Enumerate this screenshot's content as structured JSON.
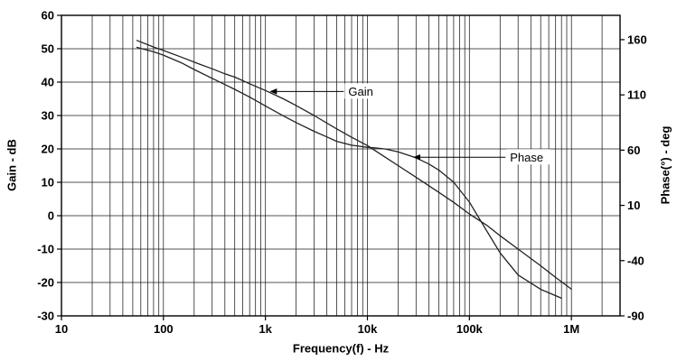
{
  "chart_data": {
    "type": "line",
    "title": "",
    "xlabel": "Frequency(f) - Hz",
    "ylabel_left": "Gain - dB",
    "ylabel_right": "Phase(°) - deg",
    "x_scale": "log",
    "x_range": [
      10,
      3000000
    ],
    "x_ticks": [
      [
        10,
        "10"
      ],
      [
        100,
        "100"
      ],
      [
        1000,
        "1k"
      ],
      [
        10000,
        "10k"
      ],
      [
        100000,
        "100k"
      ],
      [
        1000000,
        "1M"
      ]
    ],
    "y_left": {
      "range": [
        -30,
        60
      ],
      "ticks": [
        60,
        50,
        40,
        30,
        20,
        10,
        0,
        -10,
        -20,
        -30
      ]
    },
    "y_right": {
      "range": [
        -90,
        182
      ],
      "ticks": [
        160,
        110,
        60,
        10,
        -40,
        -90
      ]
    },
    "grid": "log-minor-on",
    "legend_position": "inline-annotations",
    "series": [
      {
        "name": "Gain",
        "axis": "left",
        "units": "dB",
        "points": [
          [
            55,
            52.5
          ],
          [
            80,
            50.5
          ],
          [
            100,
            49.5
          ],
          [
            150,
            47.5
          ],
          [
            220,
            45.5
          ],
          [
            300,
            44
          ],
          [
            400,
            42.5
          ],
          [
            500,
            41.5
          ],
          [
            700,
            39.5
          ],
          [
            1000,
            37.5
          ],
          [
            1500,
            35
          ],
          [
            2000,
            33
          ],
          [
            3000,
            30
          ],
          [
            5000,
            26
          ],
          [
            7000,
            23.5
          ],
          [
            10000,
            21
          ],
          [
            15000,
            17.5
          ],
          [
            20000,
            15
          ],
          [
            30000,
            11.5
          ],
          [
            50000,
            7
          ],
          [
            70000,
            4
          ],
          [
            100000,
            0.5
          ],
          [
            150000,
            -3
          ],
          [
            200000,
            -6
          ],
          [
            300000,
            -10
          ],
          [
            500000,
            -15
          ],
          [
            700000,
            -18.5
          ],
          [
            1000000,
            -22
          ]
        ]
      },
      {
        "name": "Phase",
        "axis": "right",
        "units": "deg",
        "points": [
          [
            55,
            153
          ],
          [
            80,
            149
          ],
          [
            100,
            146
          ],
          [
            150,
            139
          ],
          [
            200,
            133
          ],
          [
            300,
            125
          ],
          [
            500,
            115
          ],
          [
            700,
            108
          ],
          [
            1000,
            100
          ],
          [
            1500,
            91
          ],
          [
            2000,
            85
          ],
          [
            3000,
            77
          ],
          [
            4000,
            72
          ],
          [
            5000,
            68
          ],
          [
            7000,
            64.5
          ],
          [
            10000,
            62.5
          ],
          [
            12000,
            62
          ],
          [
            15000,
            61
          ],
          [
            20000,
            58.5
          ],
          [
            30000,
            53
          ],
          [
            40000,
            47.5
          ],
          [
            50000,
            42
          ],
          [
            70000,
            31
          ],
          [
            100000,
            13
          ],
          [
            150000,
            -14
          ],
          [
            200000,
            -33
          ],
          [
            300000,
            -53
          ],
          [
            500000,
            -66
          ],
          [
            800000,
            -74
          ]
        ]
      }
    ],
    "annotations": [
      {
        "label": "Gain",
        "text_f": 6500,
        "y_db": 37.2,
        "tip_f": 1100
      },
      {
        "label": "Phase",
        "text_f": 250000,
        "y_db": 17.5,
        "tip_f": 28000
      }
    ],
    "colors": {
      "curve": "#222222",
      "grid": "#1a1a1a",
      "axis": "#000000",
      "background": "#ffffff"
    }
  }
}
